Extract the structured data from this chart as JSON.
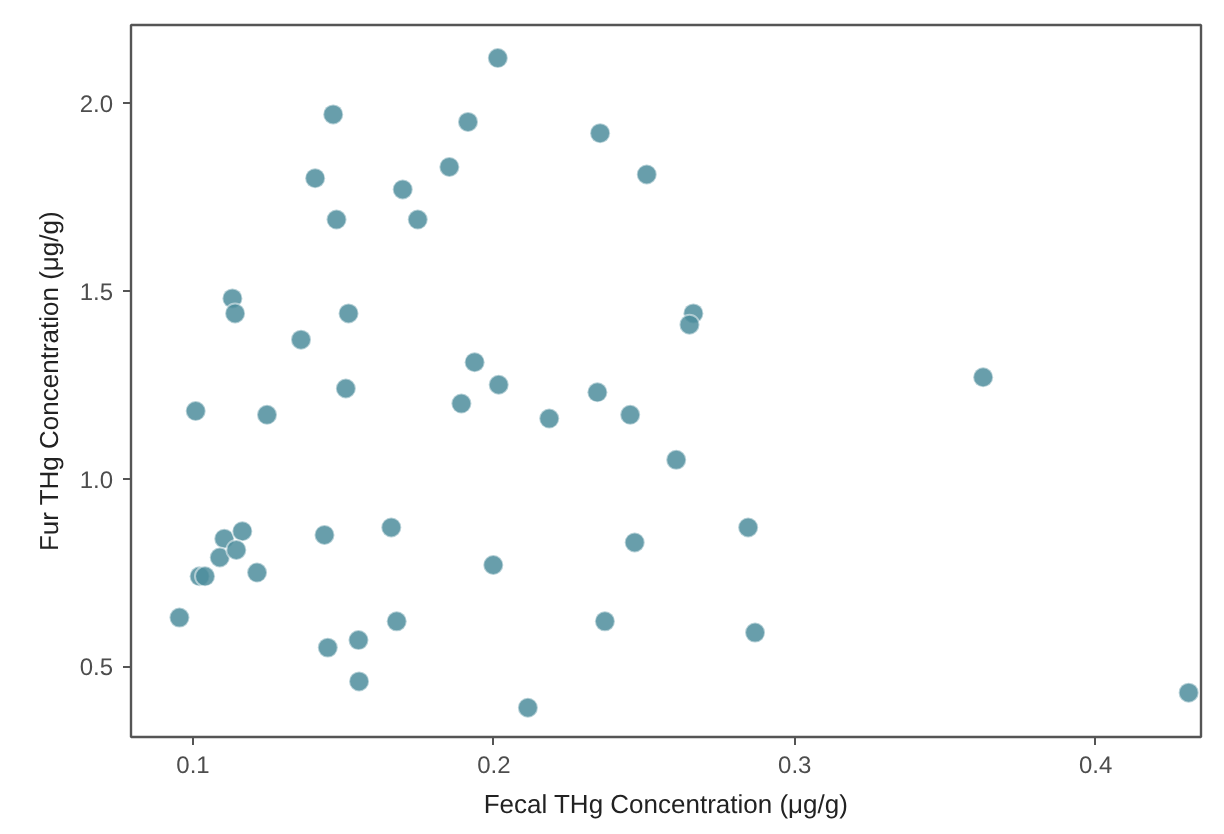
{
  "chart_data": {
    "type": "scatter",
    "xlabel": "Fecal THg Concentration (μg/g)",
    "ylabel": "Fur THg Concentration (μg/g)",
    "x": [
      0.2013,
      0.1466,
      0.1914,
      0.2353,
      0.1406,
      0.1852,
      0.1697,
      0.1477,
      0.1747,
      0.1131,
      0.114,
      0.1517,
      0.1359,
      0.1936,
      0.1508,
      0.2016,
      0.2344,
      0.1892,
      0.1009,
      0.1246,
      0.2184,
      0.2508,
      0.2663,
      0.265,
      0.3626,
      0.2453,
      0.2606,
      0.2845,
      0.2468,
      0.2369,
      0.2868,
      0.4309,
      0.1437,
      0.1659,
      0.1104,
      0.1164,
      0.1089,
      0.1144,
      0.1213,
      0.1022,
      0.104,
      0.1998,
      0.0955,
      0.1677,
      0.1448,
      0.155,
      0.1552,
      0.2113
    ],
    "values": [
      2.12,
      1.97,
      1.95,
      1.92,
      1.8,
      1.83,
      1.77,
      1.69,
      1.69,
      1.48,
      1.44,
      1.44,
      1.37,
      1.31,
      1.24,
      1.25,
      1.23,
      1.2,
      1.18,
      1.17,
      1.16,
      1.81,
      1.44,
      1.41,
      1.27,
      1.17,
      1.05,
      0.87,
      0.83,
      0.62,
      0.59,
      0.43,
      0.85,
      0.87,
      0.84,
      0.86,
      0.79,
      0.81,
      0.75,
      0.74,
      0.74,
      0.77,
      0.63,
      0.62,
      0.55,
      0.57,
      0.46,
      0.39
    ],
    "color": "#4e8d9c",
    "marker": "circle",
    "grid": false,
    "xlim": [
      0.0794,
      0.435
    ],
    "ylim": [
      0.312,
      2.208
    ],
    "xticks": [
      0.1,
      0.2,
      0.3,
      0.4
    ],
    "yticks": [
      0.5,
      {
        "value": 1,
        "label": "1.0"
      },
      1.5,
      {
        "value": 2,
        "label": "2.0"
      }
    ]
  }
}
